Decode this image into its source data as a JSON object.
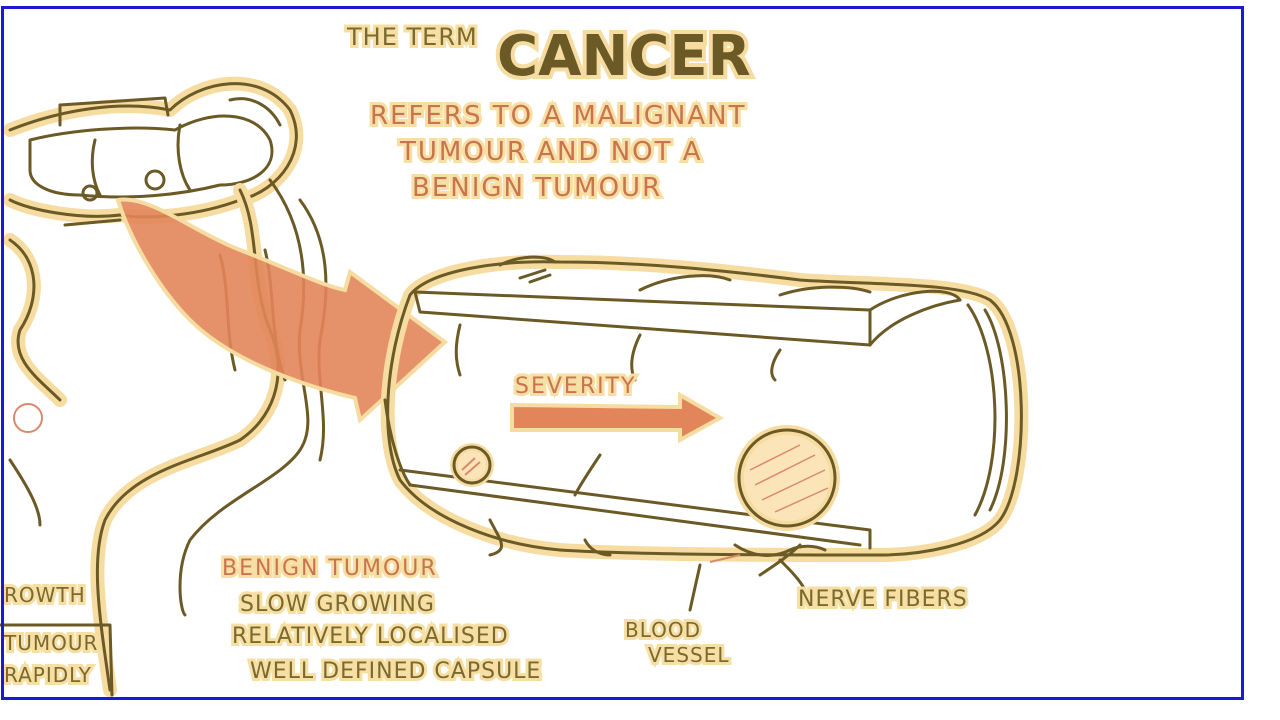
{
  "title": {
    "prefix": "THE TERM",
    "word": "CANCER",
    "line1": "REFERS TO A MALIGNANT",
    "line2": "TUMOUR AND NOT A",
    "line3": "BENIGN TUMOUR"
  },
  "severity_label": "SEVERITY",
  "benign": {
    "heading": "BENIGN TUMOUR",
    "point1": "SLOW GROWING",
    "point2": "RELATIVELY LOCALISED",
    "point3": "WELL DEFINED CAPSULE"
  },
  "left_partial": {
    "line1": "ROWTH",
    "line2": "TUMOUR",
    "line3": "RAPIDLY"
  },
  "labels": {
    "blood_vessel_1": "BLOOD",
    "blood_vessel_2": "VESSEL",
    "nerve_fibers": "NERVE FIBERS"
  },
  "colors": {
    "ink": "#6b5a25",
    "highlight": "#f6dca0",
    "arrow": "#e2855a",
    "frame": "#1a1ad6"
  }
}
